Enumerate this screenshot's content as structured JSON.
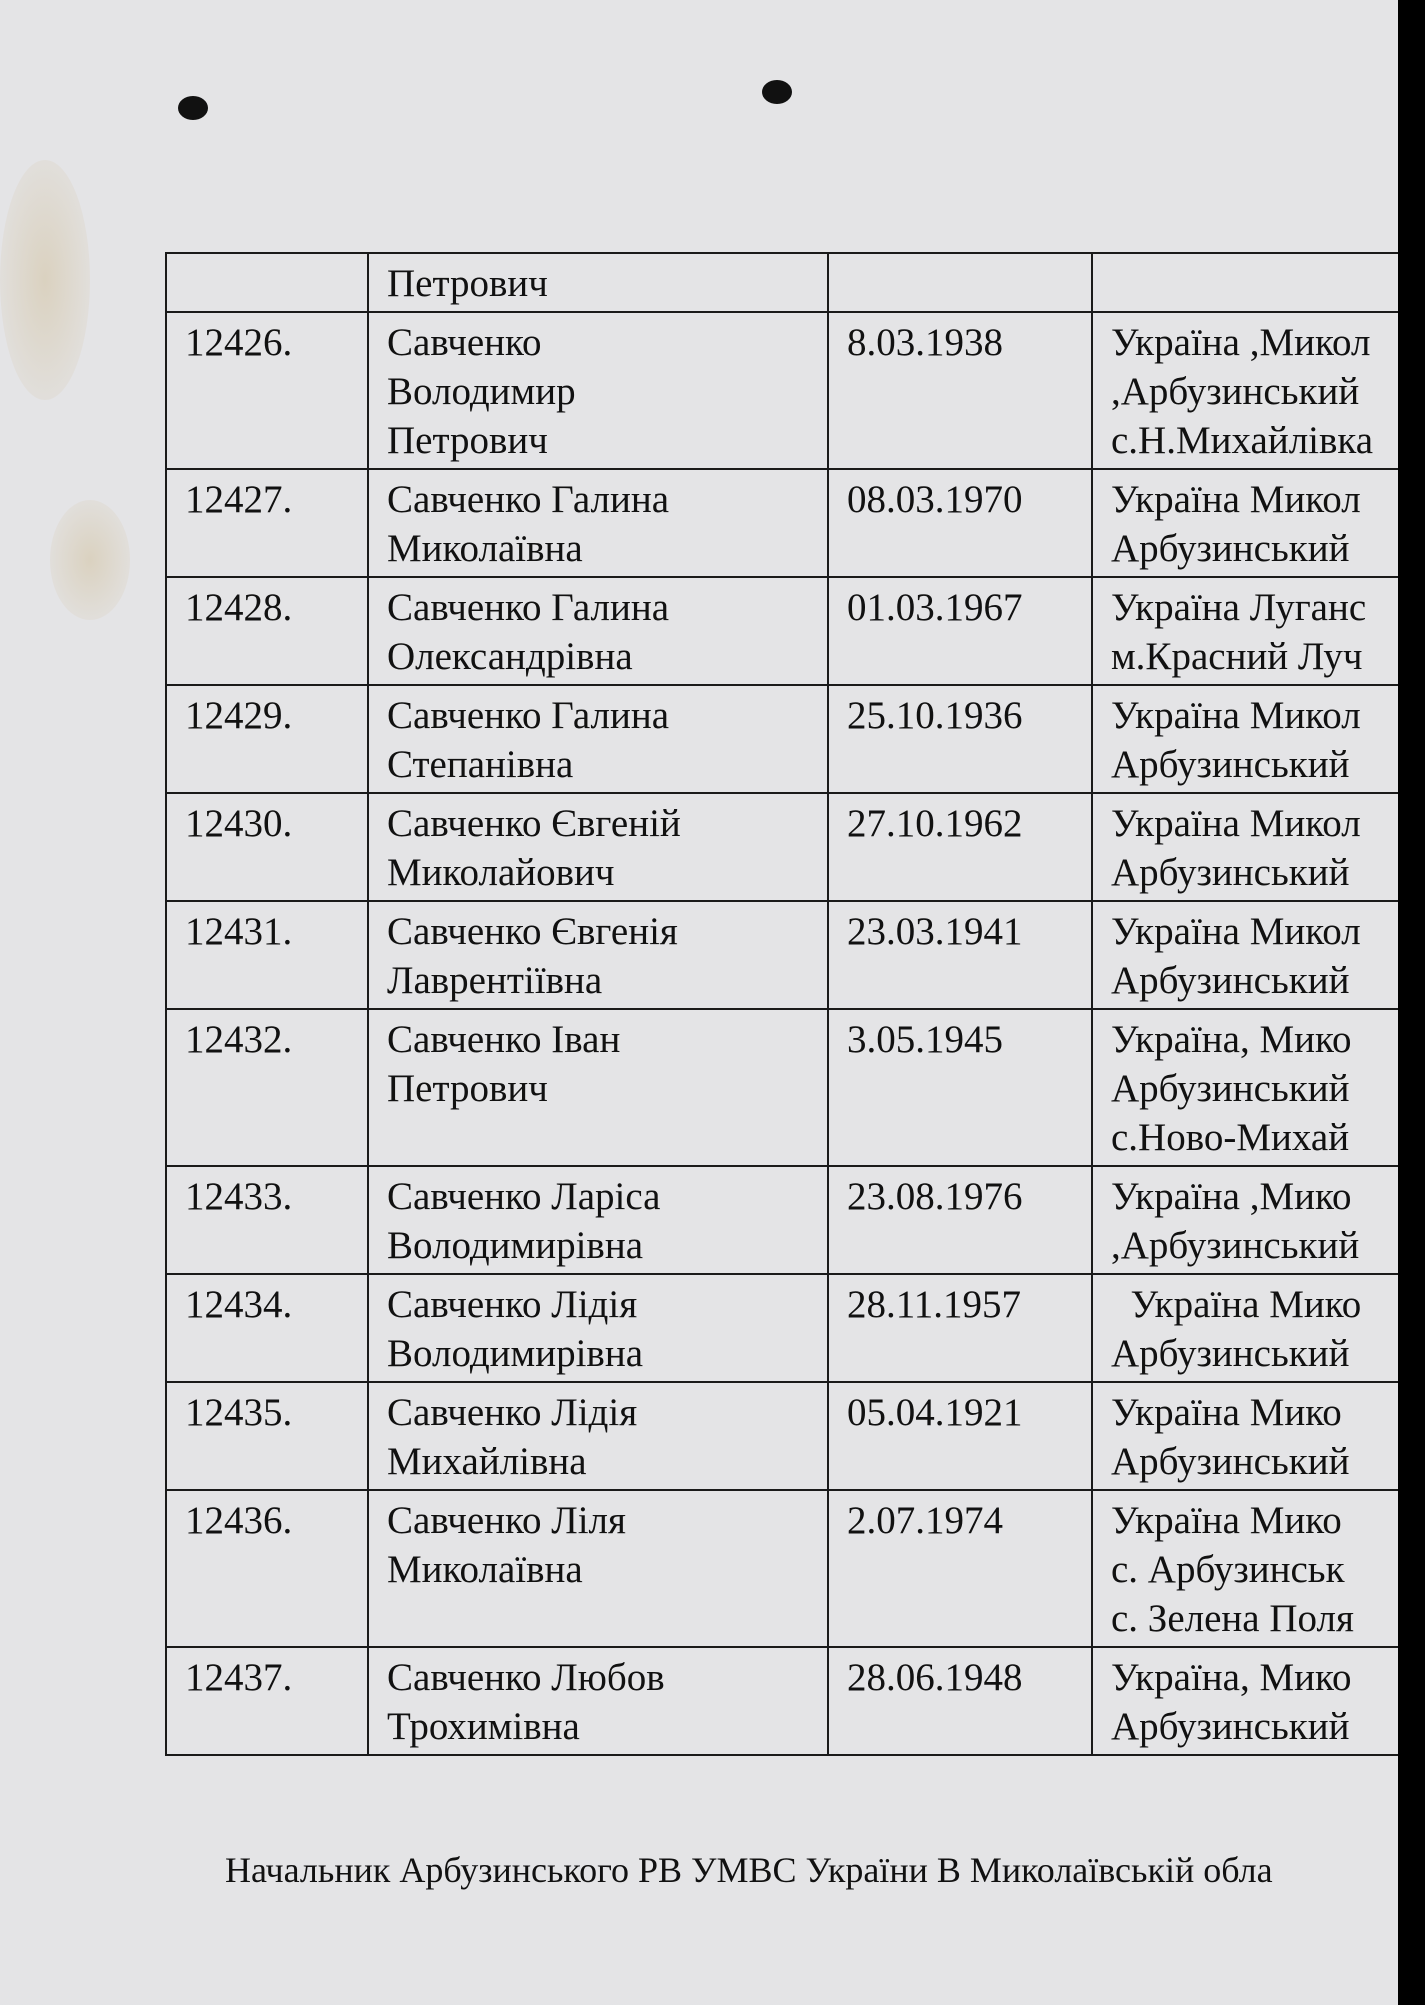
{
  "rows": [
    {
      "num": "",
      "name": "Петрович",
      "date": "",
      "address": ""
    },
    {
      "num": "12426.",
      "name": "Савченко\nВолодимир\nПетрович",
      "date": "8.03.1938",
      "address": "Україна ,Микол\n,Арбузинський\nс.Н.Михайлівка"
    },
    {
      "num": "12427.",
      "name": "Савченко Галина\nМиколаївна",
      "date": "08.03.1970",
      "address": "Україна Микол\nАрбузинський"
    },
    {
      "num": "12428.",
      "name": "Савченко Галина\nОлександрівна",
      "date": "01.03.1967",
      "address": "Україна Луганс\nм.Красний Луч"
    },
    {
      "num": "12429.",
      "name": "Савченко Галина\nСтепанівна",
      "date": "25.10.1936",
      "address": "Україна Микол\nАрбузинський"
    },
    {
      "num": "12430.",
      "name": "Савченко Євгеній\nМиколайович",
      "date": "27.10.1962",
      "address": "Україна Микол\nАрбузинський"
    },
    {
      "num": "12431.",
      "name": "Савченко Євгенія\nЛаврентіївна",
      "date": "23.03.1941",
      "address": "Україна Микол\nАрбузинський"
    },
    {
      "num": "12432.",
      "name": "Савченко Іван\nПетрович",
      "date": "3.05.1945",
      "address": "Україна, Мико\nАрбузинський\nс.Ново-Михай"
    },
    {
      "num": "12433.",
      "name": "Савченко Ларіса\nВолодимирівна",
      "date": "23.08.1976",
      "address": "Україна ,Мико\n,Арбузинський"
    },
    {
      "num": "12434.",
      "name": "Савченко Лідія\nВолодимирівна",
      "date": "28.11.1957",
      "address": "  Україна Мико\nАрбузинський"
    },
    {
      "num": "12435.",
      "name": "Савченко Лідія\nМихайлівна",
      "date": "05.04.1921",
      "address": "Україна Мико\nАрбузинський"
    },
    {
      "num": "12436.",
      "name": "Савченко Ліля\nМиколаївна",
      "date": "2.07.1974",
      "address": "Україна Мико\nс. Арбузинськ\nс. Зелена Поля"
    },
    {
      "num": "12437.",
      "name": "Савченко Любов\nТрохимівна",
      "date": "28.06.1948",
      "address": "Україна, Мико\nАрбузинський"
    }
  ],
  "footer": "Начальник Арбузинського РВ УМВС України В Миколаївській обла"
}
